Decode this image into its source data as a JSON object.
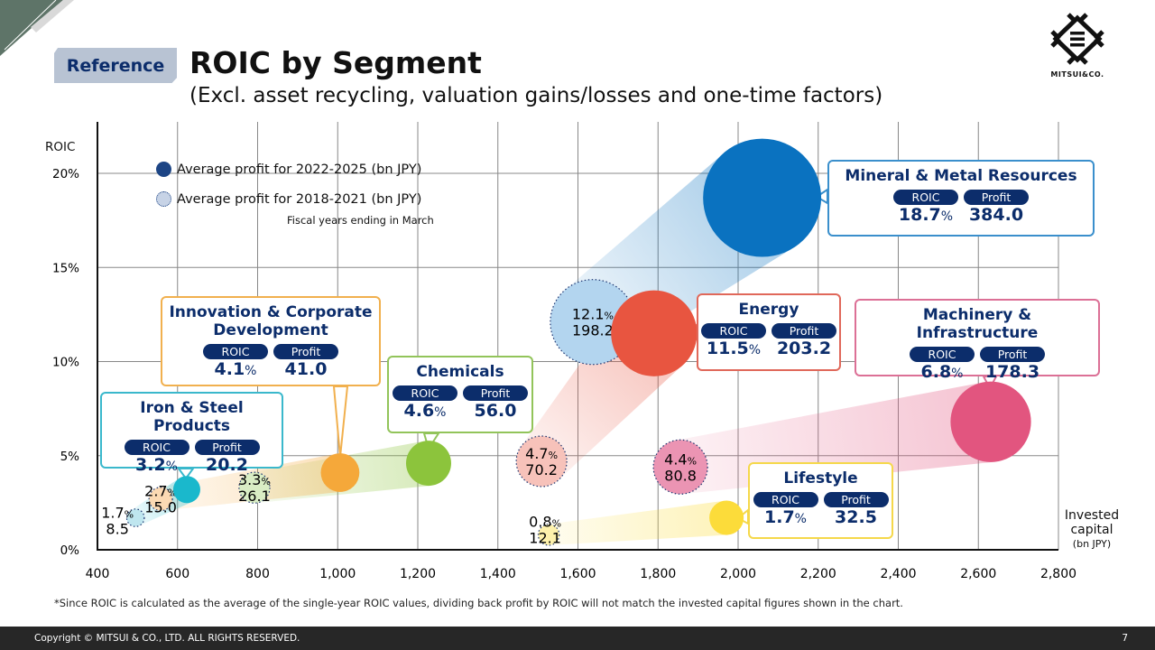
{
  "header": {
    "badge": "Reference",
    "title": "ROIC by Segment",
    "subtitle": "(Excl. asset recycling, valuation gains/losses and one-time factors)"
  },
  "logo": {
    "text": "MITSUI&CO."
  },
  "legend": {
    "current": "Average profit for 2022-2025 (bn JPY)",
    "past": "Average profit for 2018-2021 (bn JPY)",
    "note": "Fiscal years ending in March"
  },
  "labels": {
    "roic": "ROIC",
    "profit": "Profit",
    "pct": "%"
  },
  "footnote": "*Since ROIC is calculated as the average of the single-year ROIC values, dividing back profit by ROIC will not match the invested capital figures shown in the chart.",
  "footer": {
    "copyright": "Copyright © MITSUI & CO., LTD. ALL RIGHTS RESERVED.",
    "page": "7"
  },
  "chart_data": {
    "type": "scatter",
    "subtype": "bubble",
    "ylabel": "ROIC",
    "xlabel": "Invested capital",
    "xlabel_unit": "(bn JPY)",
    "xlim": [
      400,
      2800
    ],
    "ylim": [
      0,
      20
    ],
    "xticks": [
      "400",
      "600",
      "800",
      "1,000",
      "1,200",
      "1,400",
      "1,600",
      "1,800",
      "2,000",
      "2,200",
      "2,400",
      "2,600",
      "2,800"
    ],
    "yticks": [
      "0%",
      "5%",
      "10%",
      "15%",
      "20%"
    ],
    "grid": true,
    "legend_position": "top-left",
    "bubble_size": "profit",
    "segments": [
      {
        "name": "Mineral & Metal Resources",
        "color": "#0a72c0",
        "past_color": "#b3d5ef",
        "border": "#3a8fcc",
        "current": {
          "invested": 2060,
          "roic": 18.7,
          "roic_label": "18.7",
          "profit": 384.0,
          "profit_label": "384.0"
        },
        "past": {
          "invested": 1637,
          "roic": 12.1,
          "roic_label": "12.1",
          "profit": 198.2,
          "profit_label": "198.2"
        }
      },
      {
        "name": "Energy",
        "color": "#e85540",
        "past_color": "#f7c2ba",
        "border": "#e0685a",
        "current": {
          "invested": 1790,
          "roic": 11.5,
          "roic_label": "11.5",
          "profit": 203.2,
          "profit_label": "203.2"
        },
        "past": {
          "invested": 1509,
          "roic": 4.7,
          "roic_label": "4.7",
          "profit": 70.2,
          "profit_label": "70.2"
        }
      },
      {
        "name": "Machinery & Infrastructure",
        "color": "#e2557f",
        "past_color": "#eb94b3",
        "border": "#dc7096",
        "current": {
          "invested": 2631,
          "roic": 6.8,
          "roic_label": "6.8",
          "profit": 178.3,
          "profit_label": "178.3"
        },
        "past": {
          "invested": 1856,
          "roic": 4.4,
          "roic_label": "4.4",
          "profit": 80.8,
          "profit_label": "80.8"
        }
      },
      {
        "name": "Chemicals",
        "color": "#8cc43c",
        "past_color": "#d9edc4",
        "border": "#92c45a",
        "current": {
          "invested": 1227,
          "roic": 4.6,
          "roic_label": "4.6",
          "profit": 56.0,
          "profit_label": "56.0"
        },
        "past": {
          "invested": 792,
          "roic": 3.3,
          "roic_label": "3.3",
          "profit": 26.1,
          "profit_label": "26.1"
        }
      },
      {
        "name": "Innovation & Corporate Development",
        "color": "#f5a83a",
        "past_color": "#fbd9b3",
        "border": "#f1b04e",
        "current": {
          "invested": 1006,
          "roic": 4.1,
          "roic_label": "4.1",
          "profit": 41.0,
          "profit_label": "41.0"
        },
        "past": {
          "invested": 558,
          "roic": 2.7,
          "roic_label": "2.7",
          "profit": 15.0,
          "profit_label": "15.0"
        }
      },
      {
        "name": "Iron & Steel Products",
        "color": "#1ab8cc",
        "past_color": "#bfe6ef",
        "border": "#3ab8cc",
        "current": {
          "invested": 623,
          "roic": 3.2,
          "roic_label": "3.2",
          "profit": 20.2,
          "profit_label": "20.2"
        },
        "past": {
          "invested": 495,
          "roic": 1.7,
          "roic_label": "1.7",
          "profit": 8.5,
          "profit_label": "8.5"
        }
      },
      {
        "name": "Lifestyle",
        "color": "#fcdc3a",
        "past_color": "#fdf1ac",
        "border": "#f5d84a",
        "current": {
          "invested": 1971,
          "roic": 1.7,
          "roic_label": "1.7",
          "profit": 32.5,
          "profit_label": "32.5"
        },
        "past": {
          "invested": 1527,
          "roic": 0.8,
          "roic_label": "0.8",
          "profit": 12.1,
          "profit_label": "12.1"
        }
      }
    ]
  }
}
